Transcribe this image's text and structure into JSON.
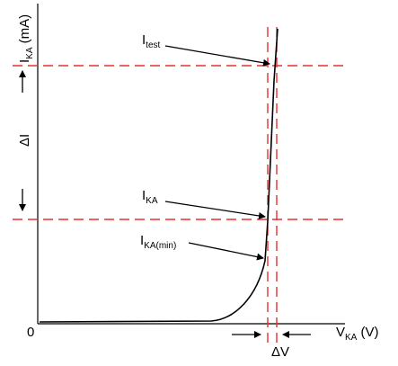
{
  "colors": {
    "guide_lines": "#e8312f",
    "curve": "#000000",
    "axes": "#000000",
    "background": "#ffffff"
  },
  "y_axis_label": {
    "main": "I",
    "subscript": "KA",
    "unit": " (mA)"
  },
  "x_axis_label": {
    "main": "V",
    "subscript": "KA",
    "unit": " (V)"
  },
  "origin_label": "0",
  "delta_i_label": "ΔI",
  "delta_v_label": "ΔV",
  "callouts": {
    "test": {
      "main": "I",
      "subscript": "test"
    },
    "ka": {
      "main": "I",
      "subscript": "KA"
    },
    "ka_min": {
      "main": "I",
      "subscript": "KA(min)"
    }
  }
}
